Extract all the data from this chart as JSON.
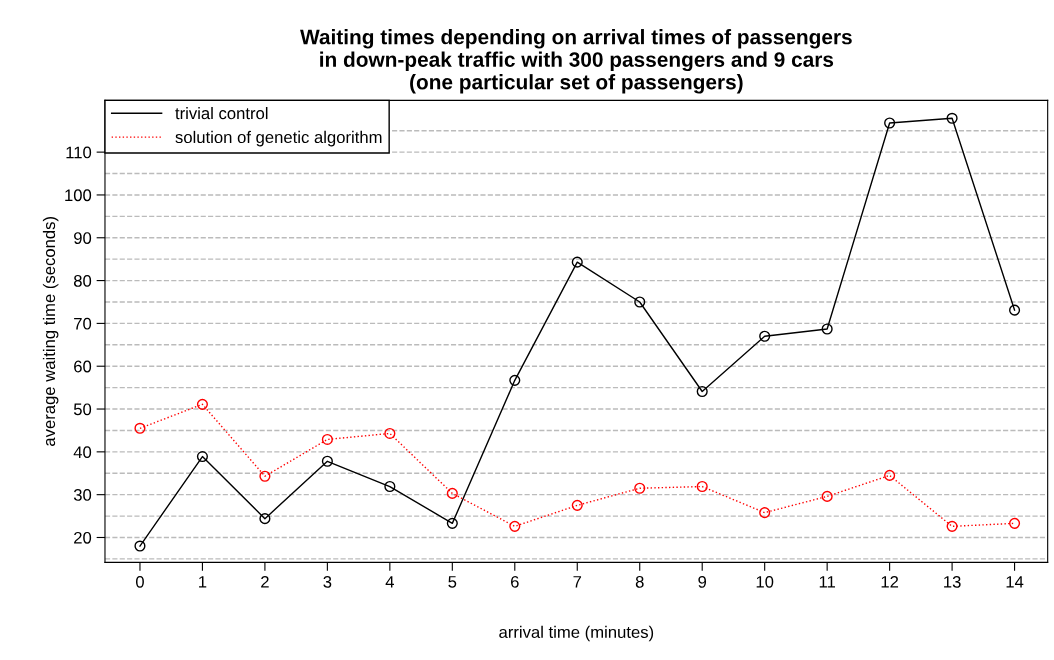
{
  "chart_data": {
    "type": "line",
    "title": "Waiting times depending on arrival times of passengers\nin down-peak traffic with 300 passengers and 9 cars\n(one particular set of passengers)",
    "xlabel": "arrival time (minutes)",
    "ylabel": "average waiting time (seconds)",
    "x": [
      0,
      1,
      2,
      3,
      4,
      5,
      6,
      7,
      8,
      9,
      10,
      11,
      12,
      13,
      14
    ],
    "series": [
      {
        "name": "trivial control",
        "color": "#000000",
        "line_style": "solid",
        "values": [
          18,
          38.9,
          24.4,
          37.8,
          31.9,
          23.3,
          56.7,
          84.3,
          75.0,
          54.1,
          67.0,
          68.7,
          116.8,
          117.9,
          73.1
        ]
      },
      {
        "name": "solution of genetic algorithm",
        "color": "#ff0000",
        "line_style": "dotted",
        "values": [
          45.5,
          51.1,
          34.3,
          42.9,
          44.3,
          30.3,
          22.6,
          27.5,
          31.5,
          31.9,
          25.8,
          29.6,
          34.5,
          22.6,
          23.3
        ]
      }
    ],
    "marker": "circle",
    "xlim": [
      -0.56,
      14.53
    ],
    "xticks": [
      0,
      1,
      2,
      3,
      4,
      5,
      6,
      7,
      8,
      9,
      10,
      11,
      12,
      13,
      14
    ],
    "ylim": [
      14.2,
      122.1
    ],
    "yticks": [
      {
        "value": 15,
        "label": null
      },
      20,
      {
        "value": 25,
        "label": null
      },
      30,
      {
        "value": 35,
        "label": null
      },
      40,
      {
        "value": 45,
        "label": null
      },
      50,
      {
        "value": 55,
        "label": null
      },
      60,
      {
        "value": 65,
        "label": null
      },
      70,
      {
        "value": 75,
        "label": null
      },
      80,
      {
        "value": 85,
        "label": null
      },
      90,
      {
        "value": 95,
        "label": null
      },
      100,
      {
        "value": 105,
        "label": null
      },
      110,
      {
        "value": 115,
        "label": null
      }
    ],
    "grid": "y",
    "legend": "top left"
  }
}
